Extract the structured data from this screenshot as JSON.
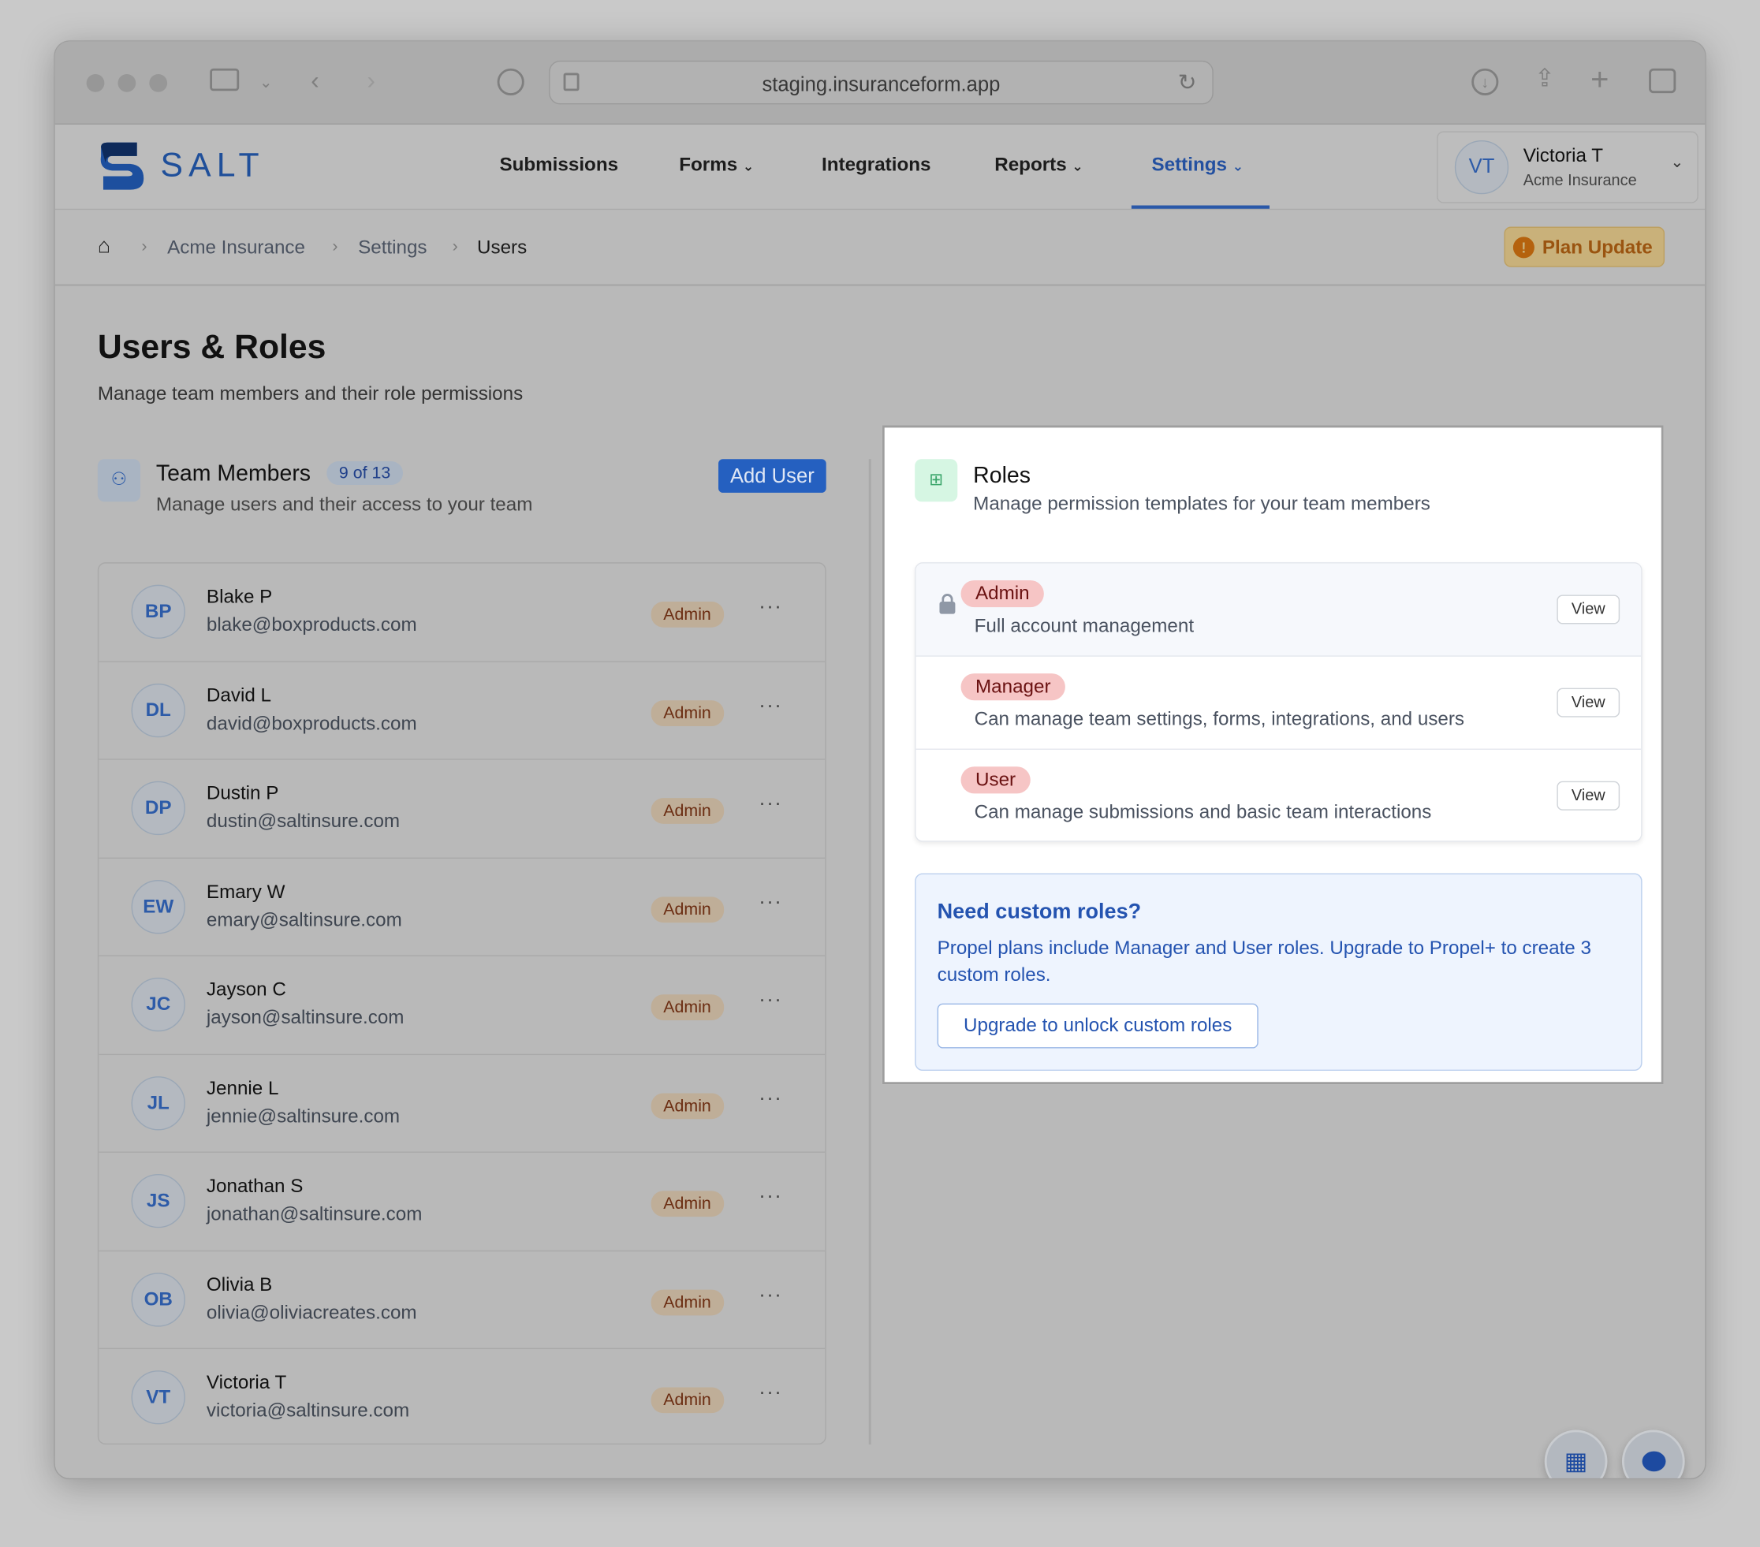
{
  "browser": {
    "url": "staging.insuranceform.app"
  },
  "brand": {
    "name": "SALT",
    "color": "#1f5fb8"
  },
  "nav": {
    "items": [
      {
        "label": "Submissions"
      },
      {
        "label": "Forms"
      },
      {
        "label": "Integrations"
      },
      {
        "label": "Reports"
      },
      {
        "label": "Settings",
        "active": true
      }
    ]
  },
  "account": {
    "initials": "VT",
    "name": "Victoria T",
    "org": "Acme Insurance"
  },
  "breadcrumb": {
    "items": [
      "Acme Insurance",
      "Settings",
      "Users"
    ]
  },
  "plan_update": "Plan Update",
  "page": {
    "title": "Users & Roles",
    "subtitle": "Manage team members and their role permissions"
  },
  "team": {
    "title": "Team Members",
    "count": "9 of 13",
    "subtitle": "Manage users and their access to your team",
    "add_label": "Add User",
    "users": [
      {
        "initials": "BP",
        "name": "Blake P",
        "email": "blake@boxproducts.com",
        "role": "Admin"
      },
      {
        "initials": "DL",
        "name": "David L",
        "email": "david@boxproducts.com",
        "role": "Admin"
      },
      {
        "initials": "DP",
        "name": "Dustin P",
        "email": "dustin@saltinsure.com",
        "role": "Admin"
      },
      {
        "initials": "EW",
        "name": "Emary W",
        "email": "emary@saltinsure.com",
        "role": "Admin"
      },
      {
        "initials": "JC",
        "name": "Jayson C",
        "email": "jayson@saltinsure.com",
        "role": "Admin"
      },
      {
        "initials": "JL",
        "name": "Jennie L",
        "email": "jennie@saltinsure.com",
        "role": "Admin"
      },
      {
        "initials": "JS",
        "name": "Jonathan S",
        "email": "jonathan@saltinsure.com",
        "role": "Admin"
      },
      {
        "initials": "OB",
        "name": "Olivia B",
        "email": "olivia@oliviacreates.com",
        "role": "Admin"
      },
      {
        "initials": "VT",
        "name": "Victoria T",
        "email": "victoria@saltinsure.com",
        "role": "Admin"
      }
    ]
  },
  "roles": {
    "title": "Roles",
    "subtitle": "Manage permission templates for your team members",
    "items": [
      {
        "name": "Admin",
        "desc": "Full account management",
        "locked": true,
        "view": "View"
      },
      {
        "name": "Manager",
        "desc": "Can manage team settings, forms, integrations, and users",
        "view": "View"
      },
      {
        "name": "User",
        "desc": "Can manage submissions and basic team interactions",
        "view": "View"
      }
    ],
    "upsell": {
      "title": "Need custom roles?",
      "text": "Propel plans include Manager and User roles. Upgrade to Propel+ to create 3 custom roles.",
      "button": "Upgrade to unlock custom roles"
    }
  }
}
